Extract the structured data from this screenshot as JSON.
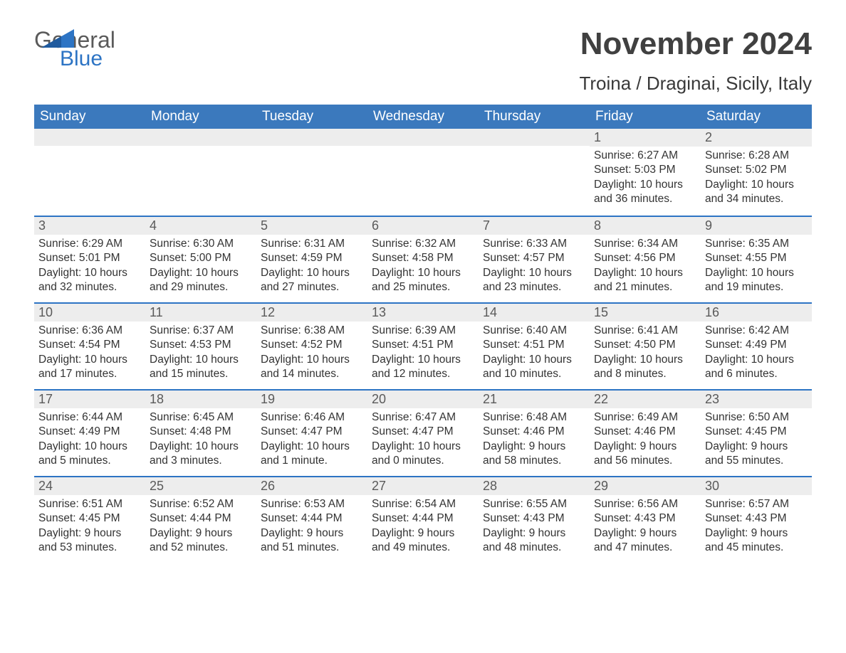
{
  "brand": {
    "word1": "General",
    "word2": "Blue"
  },
  "title": "November 2024",
  "location": "Troina / Draginai, Sicily, Italy",
  "colors": {
    "header_bg": "#3b79bd",
    "header_text": "#ffffff",
    "rule": "#2d74c4",
    "daynum_bg": "#ededed",
    "text": "#333333",
    "logo_grey": "#5a5a5a",
    "logo_blue": "#2d74c4"
  },
  "days_of_week": [
    "Sunday",
    "Monday",
    "Tuesday",
    "Wednesday",
    "Thursday",
    "Friday",
    "Saturday"
  ],
  "weeks": [
    [
      null,
      null,
      null,
      null,
      null,
      {
        "n": "1",
        "sunrise": "Sunrise: 6:27 AM",
        "sunset": "Sunset: 5:03 PM",
        "daylight1": "Daylight: 10 hours",
        "daylight2": "and 36 minutes."
      },
      {
        "n": "2",
        "sunrise": "Sunrise: 6:28 AM",
        "sunset": "Sunset: 5:02 PM",
        "daylight1": "Daylight: 10 hours",
        "daylight2": "and 34 minutes."
      }
    ],
    [
      {
        "n": "3",
        "sunrise": "Sunrise: 6:29 AM",
        "sunset": "Sunset: 5:01 PM",
        "daylight1": "Daylight: 10 hours",
        "daylight2": "and 32 minutes."
      },
      {
        "n": "4",
        "sunrise": "Sunrise: 6:30 AM",
        "sunset": "Sunset: 5:00 PM",
        "daylight1": "Daylight: 10 hours",
        "daylight2": "and 29 minutes."
      },
      {
        "n": "5",
        "sunrise": "Sunrise: 6:31 AM",
        "sunset": "Sunset: 4:59 PM",
        "daylight1": "Daylight: 10 hours",
        "daylight2": "and 27 minutes."
      },
      {
        "n": "6",
        "sunrise": "Sunrise: 6:32 AM",
        "sunset": "Sunset: 4:58 PM",
        "daylight1": "Daylight: 10 hours",
        "daylight2": "and 25 minutes."
      },
      {
        "n": "7",
        "sunrise": "Sunrise: 6:33 AM",
        "sunset": "Sunset: 4:57 PM",
        "daylight1": "Daylight: 10 hours",
        "daylight2": "and 23 minutes."
      },
      {
        "n": "8",
        "sunrise": "Sunrise: 6:34 AM",
        "sunset": "Sunset: 4:56 PM",
        "daylight1": "Daylight: 10 hours",
        "daylight2": "and 21 minutes."
      },
      {
        "n": "9",
        "sunrise": "Sunrise: 6:35 AM",
        "sunset": "Sunset: 4:55 PM",
        "daylight1": "Daylight: 10 hours",
        "daylight2": "and 19 minutes."
      }
    ],
    [
      {
        "n": "10",
        "sunrise": "Sunrise: 6:36 AM",
        "sunset": "Sunset: 4:54 PM",
        "daylight1": "Daylight: 10 hours",
        "daylight2": "and 17 minutes."
      },
      {
        "n": "11",
        "sunrise": "Sunrise: 6:37 AM",
        "sunset": "Sunset: 4:53 PM",
        "daylight1": "Daylight: 10 hours",
        "daylight2": "and 15 minutes."
      },
      {
        "n": "12",
        "sunrise": "Sunrise: 6:38 AM",
        "sunset": "Sunset: 4:52 PM",
        "daylight1": "Daylight: 10 hours",
        "daylight2": "and 14 minutes."
      },
      {
        "n": "13",
        "sunrise": "Sunrise: 6:39 AM",
        "sunset": "Sunset: 4:51 PM",
        "daylight1": "Daylight: 10 hours",
        "daylight2": "and 12 minutes."
      },
      {
        "n": "14",
        "sunrise": "Sunrise: 6:40 AM",
        "sunset": "Sunset: 4:51 PM",
        "daylight1": "Daylight: 10 hours",
        "daylight2": "and 10 minutes."
      },
      {
        "n": "15",
        "sunrise": "Sunrise: 6:41 AM",
        "sunset": "Sunset: 4:50 PM",
        "daylight1": "Daylight: 10 hours",
        "daylight2": "and 8 minutes."
      },
      {
        "n": "16",
        "sunrise": "Sunrise: 6:42 AM",
        "sunset": "Sunset: 4:49 PM",
        "daylight1": "Daylight: 10 hours",
        "daylight2": "and 6 minutes."
      }
    ],
    [
      {
        "n": "17",
        "sunrise": "Sunrise: 6:44 AM",
        "sunset": "Sunset: 4:49 PM",
        "daylight1": "Daylight: 10 hours",
        "daylight2": "and 5 minutes."
      },
      {
        "n": "18",
        "sunrise": "Sunrise: 6:45 AM",
        "sunset": "Sunset: 4:48 PM",
        "daylight1": "Daylight: 10 hours",
        "daylight2": "and 3 minutes."
      },
      {
        "n": "19",
        "sunrise": "Sunrise: 6:46 AM",
        "sunset": "Sunset: 4:47 PM",
        "daylight1": "Daylight: 10 hours",
        "daylight2": "and 1 minute."
      },
      {
        "n": "20",
        "sunrise": "Sunrise: 6:47 AM",
        "sunset": "Sunset: 4:47 PM",
        "daylight1": "Daylight: 10 hours",
        "daylight2": "and 0 minutes."
      },
      {
        "n": "21",
        "sunrise": "Sunrise: 6:48 AM",
        "sunset": "Sunset: 4:46 PM",
        "daylight1": "Daylight: 9 hours",
        "daylight2": "and 58 minutes."
      },
      {
        "n": "22",
        "sunrise": "Sunrise: 6:49 AM",
        "sunset": "Sunset: 4:46 PM",
        "daylight1": "Daylight: 9 hours",
        "daylight2": "and 56 minutes."
      },
      {
        "n": "23",
        "sunrise": "Sunrise: 6:50 AM",
        "sunset": "Sunset: 4:45 PM",
        "daylight1": "Daylight: 9 hours",
        "daylight2": "and 55 minutes."
      }
    ],
    [
      {
        "n": "24",
        "sunrise": "Sunrise: 6:51 AM",
        "sunset": "Sunset: 4:45 PM",
        "daylight1": "Daylight: 9 hours",
        "daylight2": "and 53 minutes."
      },
      {
        "n": "25",
        "sunrise": "Sunrise: 6:52 AM",
        "sunset": "Sunset: 4:44 PM",
        "daylight1": "Daylight: 9 hours",
        "daylight2": "and 52 minutes."
      },
      {
        "n": "26",
        "sunrise": "Sunrise: 6:53 AM",
        "sunset": "Sunset: 4:44 PM",
        "daylight1": "Daylight: 9 hours",
        "daylight2": "and 51 minutes."
      },
      {
        "n": "27",
        "sunrise": "Sunrise: 6:54 AM",
        "sunset": "Sunset: 4:44 PM",
        "daylight1": "Daylight: 9 hours",
        "daylight2": "and 49 minutes."
      },
      {
        "n": "28",
        "sunrise": "Sunrise: 6:55 AM",
        "sunset": "Sunset: 4:43 PM",
        "daylight1": "Daylight: 9 hours",
        "daylight2": "and 48 minutes."
      },
      {
        "n": "29",
        "sunrise": "Sunrise: 6:56 AM",
        "sunset": "Sunset: 4:43 PM",
        "daylight1": "Daylight: 9 hours",
        "daylight2": "and 47 minutes."
      },
      {
        "n": "30",
        "sunrise": "Sunrise: 6:57 AM",
        "sunset": "Sunset: 4:43 PM",
        "daylight1": "Daylight: 9 hours",
        "daylight2": "and 45 minutes."
      }
    ]
  ]
}
